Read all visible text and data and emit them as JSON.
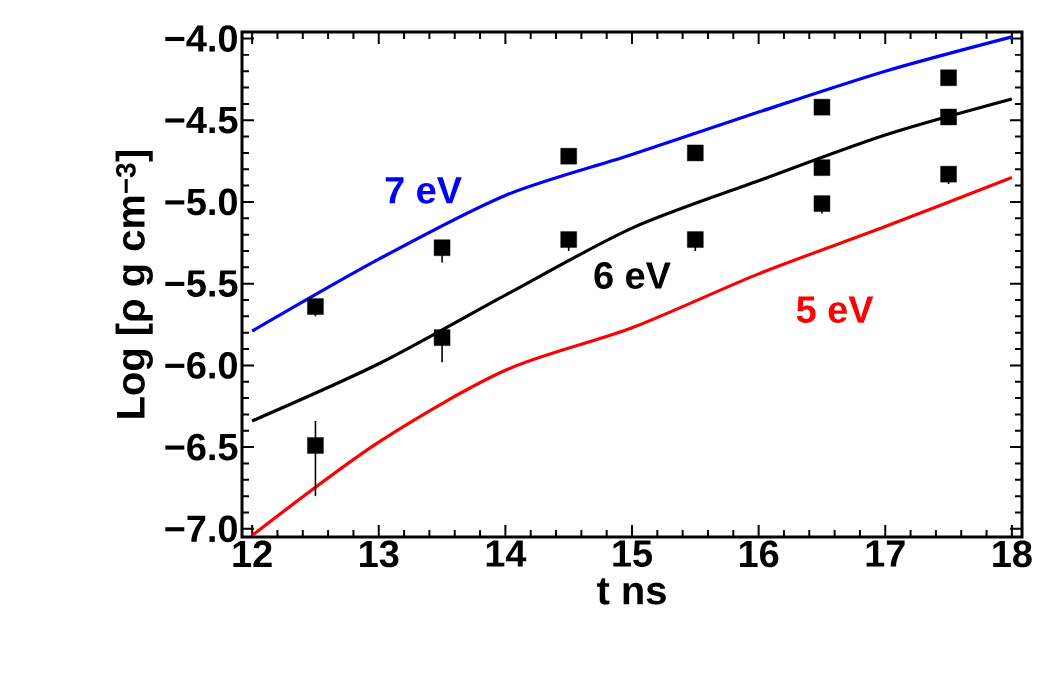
{
  "chart_data": {
    "type": "line",
    "xlabel": "t ns",
    "ylabel": "Log [ρ g cm$^{−3}$]",
    "xlim": [
      11.92,
      18.08
    ],
    "ylim": [
      -7.05,
      -3.96
    ],
    "xticks": [
      12,
      13,
      14,
      15,
      16,
      17,
      18
    ],
    "yticks": [
      {
        "value": -4.0,
        "label": "−4.0"
      },
      {
        "value": -4.5,
        "label": "−4.5"
      },
      {
        "value": -5.0,
        "label": "−5.0"
      },
      {
        "value": -5.5,
        "label": "−5.5"
      },
      {
        "value": -6.0,
        "label": "−6.0"
      },
      {
        "value": -6.5,
        "label": "−6.5"
      },
      {
        "value": -7.0,
        "label": "−7.0"
      }
    ],
    "grid": false,
    "legend": false,
    "series": [
      {
        "name": "7 eV",
        "color": "#0000ff",
        "x": [
          12,
          13,
          14,
          15,
          16,
          17,
          18
        ],
        "values": [
          -5.79,
          -5.35,
          -4.96,
          -4.71,
          -4.45,
          -4.2,
          -3.99
        ]
      },
      {
        "name": "6 eV",
        "color": "#000000",
        "x": [
          12,
          13,
          14,
          15,
          16,
          17,
          18
        ],
        "values": [
          -6.34,
          -5.99,
          -5.57,
          -5.16,
          -4.87,
          -4.59,
          -4.37
        ]
      },
      {
        "name": "5 eV",
        "color": "#ff0000",
        "x": [
          12,
          13,
          14,
          15,
          16,
          17,
          18
        ],
        "values": [
          -7.04,
          -6.47,
          -6.03,
          -5.77,
          -5.44,
          -5.15,
          -4.85
        ]
      },
      {
        "type": "scatter",
        "marker": "square",
        "color": "#000000",
        "x": [
          12.5,
          12.5,
          13.5,
          13.5,
          14.5,
          14.5,
          15.5,
          15.5,
          16.5,
          16.5,
          16.5,
          17.5,
          17.5,
          17.5
        ],
        "values": [
          -5.64,
          -6.49,
          -5.28,
          -5.83,
          -4.72,
          -5.23,
          -4.7,
          -5.23,
          -4.42,
          -4.79,
          -5.01,
          -4.24,
          -4.48,
          -4.83
        ],
        "errors": [
          [
            -5.7,
            -5.64
          ],
          [
            -6.8,
            -6.34
          ],
          [
            -5.37,
            -5.28
          ],
          [
            -5.98,
            -5.83
          ],
          null,
          [
            -5.3,
            -5.23
          ],
          null,
          [
            -5.3,
            -5.2
          ],
          null,
          null,
          [
            -5.07,
            -5.01
          ],
          null,
          null,
          [
            -4.89,
            -4.83
          ]
        ]
      }
    ]
  }
}
